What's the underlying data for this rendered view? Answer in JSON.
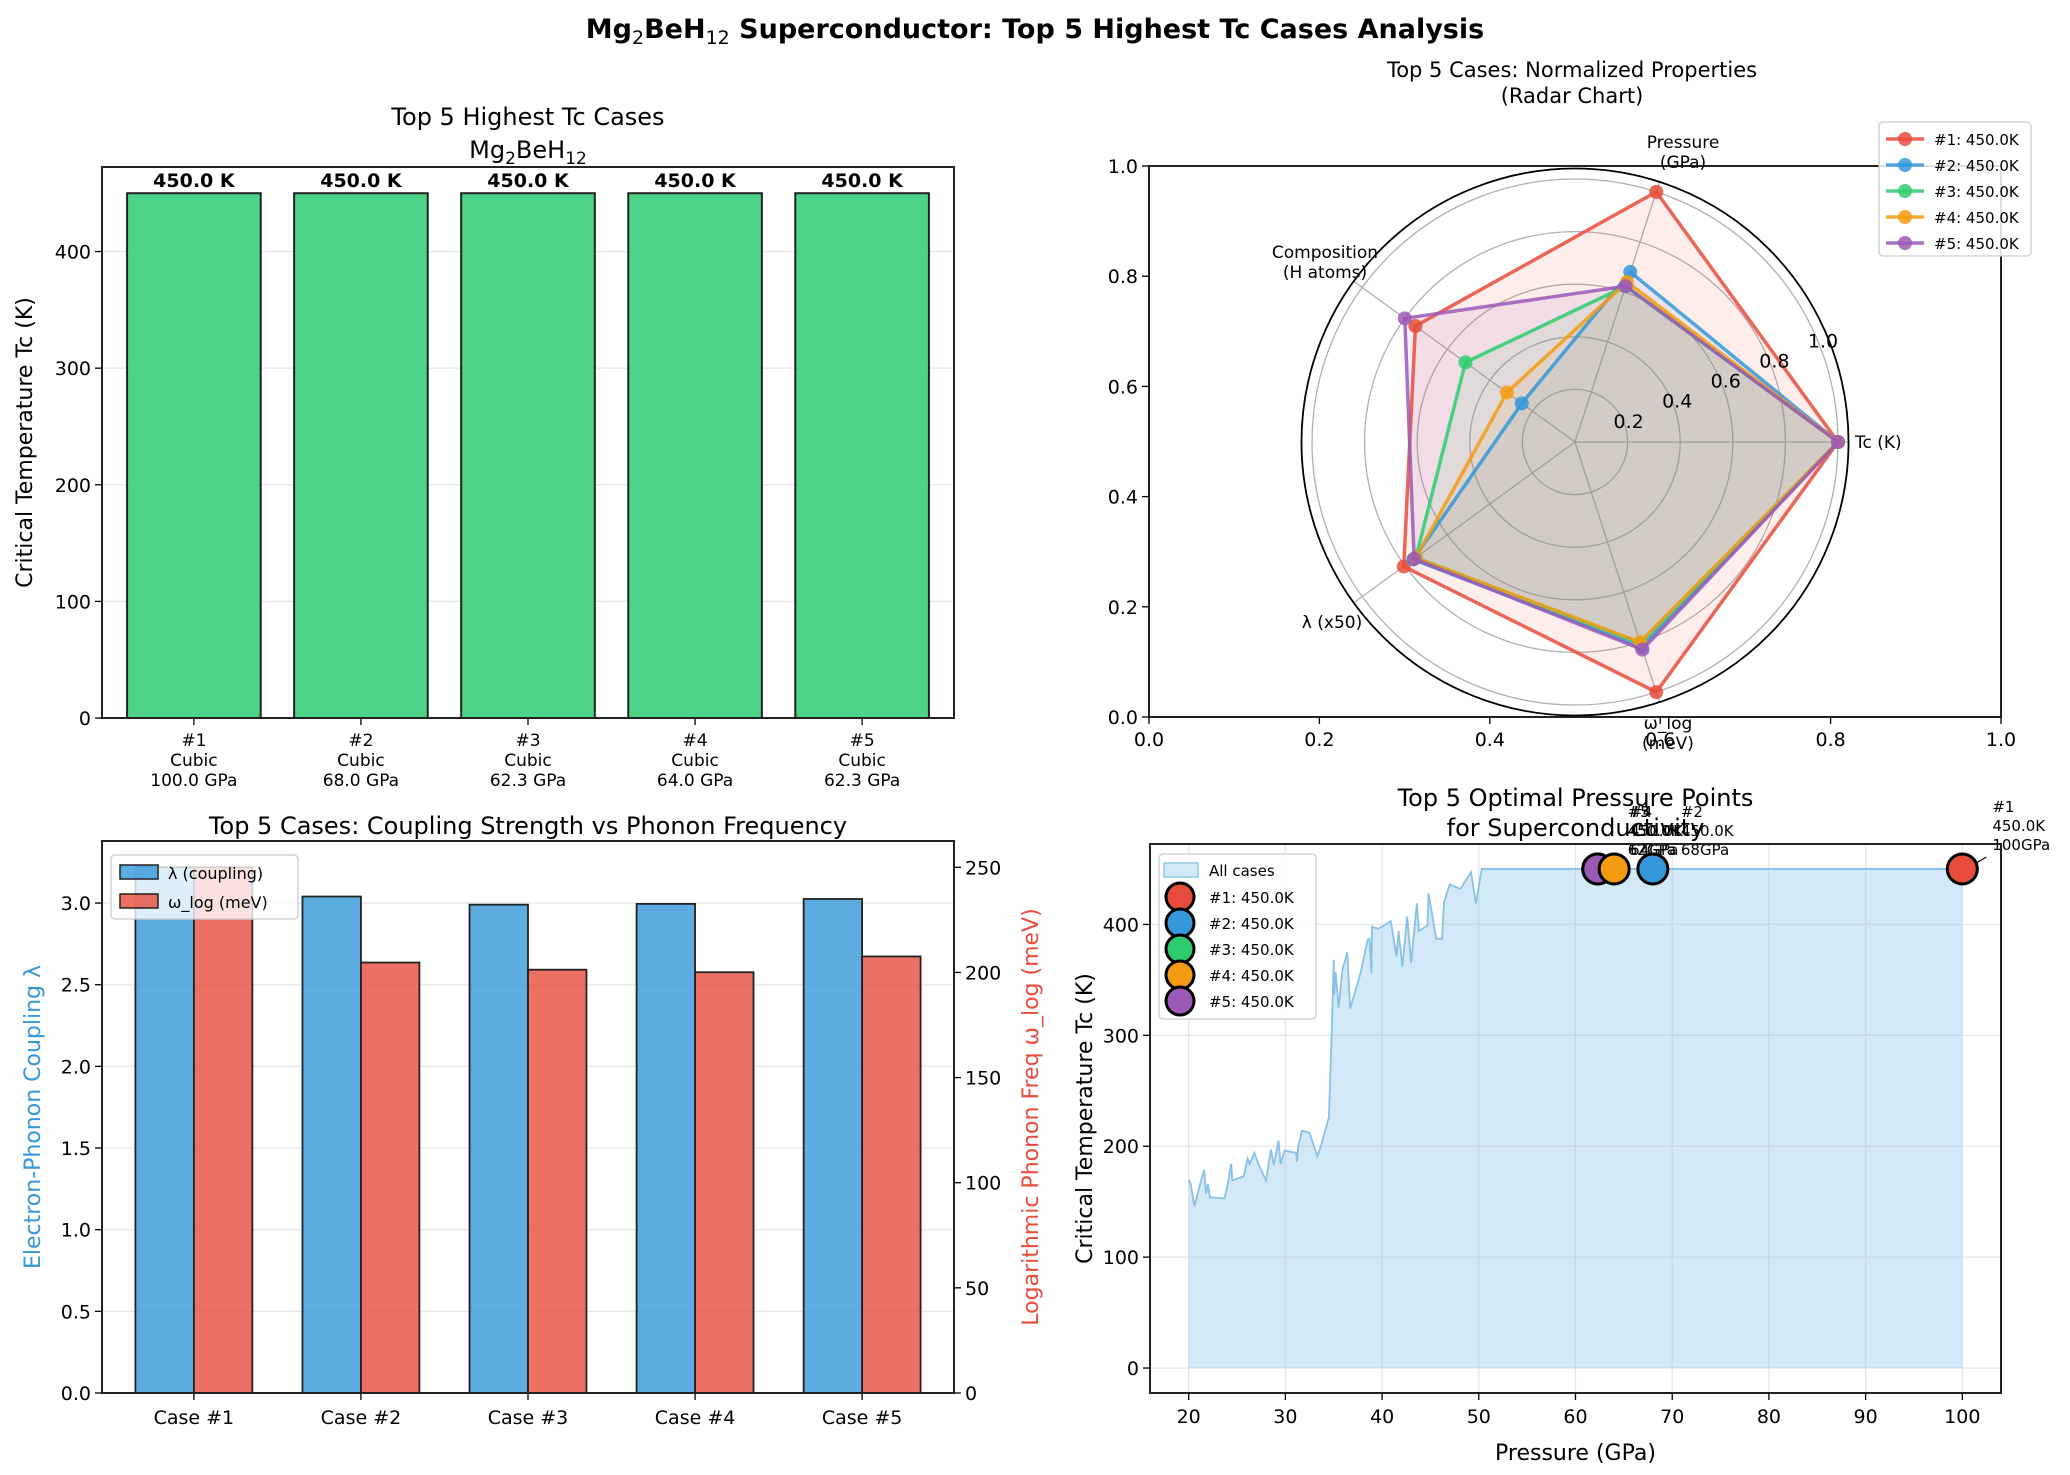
{
  "figure": {
    "suptitle_main": "Mg",
    "suptitle_sub1": "2",
    "suptitle_mid": "BeH",
    "suptitle_sub2": "12",
    "suptitle_rest": " Superconductor: Top 5 Highest Tc Cases Analysis"
  },
  "chart_data": [
    {
      "id": "tc_bar",
      "type": "bar",
      "title_line1": "Top 5 Highest Tc Cases",
      "title_line2_parts": [
        "Mg",
        "2",
        "BeH",
        "12"
      ],
      "ylabel": "Critical Temperature Tc (K)",
      "xlabel": "",
      "ylim": [
        0,
        472.5
      ],
      "yticks": [
        0,
        100,
        200,
        300,
        400
      ],
      "grid": "y",
      "color": "#2ecc71",
      "categories": [
        [
          "#1",
          "Cubic",
          "100.0 GPa"
        ],
        [
          "#2",
          "Cubic",
          "68.0 GPa"
        ],
        [
          "#3",
          "Cubic",
          "62.3 GPa"
        ],
        [
          "#4",
          "Cubic",
          "64.0 GPa"
        ],
        [
          "#5",
          "Cubic",
          "62.3 GPa"
        ]
      ],
      "values": [
        450.0,
        450.0,
        450.0,
        450.0,
        450.0
      ],
      "data_labels": [
        "450.0 K",
        "450.0 K",
        "450.0 K",
        "450.0 K",
        "450.0 K"
      ]
    },
    {
      "id": "radar",
      "type": "radar",
      "title_line1": "Top 5 Cases: Normalized Properties",
      "title_line2": "(Radar Chart)",
      "axes_labels": [
        [
          "Tc (K)"
        ],
        [
          "Pressure",
          "(GPa)"
        ],
        [
          "Composition",
          "(H atoms)"
        ],
        [
          "λ (x50)"
        ],
        [
          "ω_log",
          "(meV)"
        ]
      ],
      "rlim": [
        0,
        1.04
      ],
      "rticks": [
        0.2,
        0.4,
        0.6,
        0.8,
        1.0
      ],
      "rtick_labels": [
        "0.2",
        "0.4",
        "0.6",
        "0.8",
        "1.0"
      ],
      "background_xticks": [
        "0.0",
        "0.2",
        "0.4",
        "0.6",
        "0.8",
        "1.0"
      ],
      "background_yticks": [
        "0.0",
        "0.2",
        "0.4",
        "0.6",
        "0.8",
        "1.0"
      ],
      "legend_position": "top-right",
      "series": [
        {
          "name": "#1: 450.0K",
          "color": "#e74c3c",
          "values": [
            1.0,
            1.0,
            0.75,
            0.805,
            1.0
          ]
        },
        {
          "name": "#2: 450.0K",
          "color": "#3498db",
          "values": [
            1.0,
            0.68,
            0.25,
            0.76,
            0.82
          ]
        },
        {
          "name": "#3: 450.0K",
          "color": "#2ecc71",
          "values": [
            1.0,
            0.623,
            0.515,
            0.748,
            0.806
          ]
        },
        {
          "name": "#4: 450.0K",
          "color": "#f39c12",
          "values": [
            1.0,
            0.64,
            0.32,
            0.749,
            0.8
          ]
        },
        {
          "name": "#5: 450.0K",
          "color": "#9b59b6",
          "values": [
            1.0,
            0.623,
            0.8,
            0.756,
            0.83
          ]
        }
      ]
    },
    {
      "id": "coupling_bar",
      "type": "bar",
      "title": "Top 5 Cases: Coupling Strength vs Phonon Frequency",
      "categories": [
        "Case #1",
        "Case #2",
        "Case #3",
        "Case #4",
        "Case #5"
      ],
      "ylabel_left": "Electron-Phonon Coupling λ",
      "ylabel_right": "Logarithmic Phonon Freq ω_log (meV)",
      "ylim_left": [
        0,
        3.38
      ],
      "ylim_right": [
        0,
        262.5
      ],
      "yticks_left": [
        "0.0",
        "0.5",
        "1.0",
        "1.5",
        "2.0",
        "2.5",
        "3.0"
      ],
      "yticks_right": [
        "0",
        "50",
        "100",
        "150",
        "200",
        "250"
      ],
      "legend_position": "top-left",
      "series": [
        {
          "name": "λ (coupling)",
          "axis": "left",
          "color": "#3498db",
          "values": [
            3.22,
            3.04,
            2.99,
            2.995,
            3.025
          ]
        },
        {
          "name": "ω_log (meV)",
          "axis": "right",
          "color": "#e74c3c",
          "values": [
            250.0,
            204.7,
            201.3,
            200.1,
            207.6
          ]
        }
      ],
      "left_label_color": "#3498db",
      "right_label_color": "#e74c3c"
    },
    {
      "id": "pressure_points",
      "type": "area+scatter",
      "title_line1": "Top 5 Optimal Pressure Points",
      "title_line2": "for Superconductivity",
      "xlabel": "Pressure (GPa)",
      "ylabel": "Critical Temperature Tc (K)",
      "xlim": [
        16,
        104
      ],
      "ylim": [
        -22.5,
        472.5
      ],
      "xticks": [
        20,
        30,
        40,
        50,
        60,
        70,
        80,
        90,
        100
      ],
      "yticks": [
        0,
        100,
        200,
        300,
        400
      ],
      "legend_position": "top-left",
      "area": {
        "name": "All cases",
        "color": "#85c1e9",
        "x": [
          20.0,
          20.2,
          20.6,
          21.1,
          21.6,
          21.8,
          22.0,
          22.2,
          23.7,
          24.0,
          24.4,
          24.5,
          25.7,
          26.1,
          26.3,
          26.8,
          27.2,
          28.0,
          28.5,
          28.8,
          29.3,
          29.5,
          29.9,
          31.1,
          31.2,
          31.3,
          31.7,
          32.5,
          33.3,
          33.6,
          34.5,
          34.8,
          35.0,
          35.05,
          35.2,
          35.5,
          35.9,
          36.4,
          36.7,
          37.8,
          38.5,
          38.7,
          38.9,
          38.95,
          39.6,
          40.9,
          41.5,
          41.7,
          42.1,
          42.6,
          43.0,
          43.6,
          43.8,
          44.7,
          44.8,
          45.6,
          46.2,
          46.4,
          47.0,
          48.1,
          49.2,
          49.7,
          50.3,
          100.0
        ],
        "y": [
          170,
          166,
          146,
          163,
          179,
          157,
          166,
          154,
          153,
          164,
          184,
          169,
          173,
          189,
          184,
          194,
          184,
          169,
          197,
          183,
          205,
          184,
          196,
          194,
          186,
          198,
          214,
          212,
          191,
          198,
          226,
          304,
          368,
          337,
          357,
          325,
          359,
          375,
          324,
          357,
          386,
          387,
          356,
          398,
          396,
          403,
          371,
          394,
          362,
          407,
          365,
          419,
          394,
          399,
          428,
          387,
          387,
          420,
          436,
          432,
          447,
          419,
          450,
          450
        ]
      },
      "points": [
        {
          "name": "#1: 450.0K",
          "rank": "#1",
          "x": 100.0,
          "y": 450.0,
          "color": "#e74c3c",
          "annot": [
            "#1",
            "450.0K",
            "100GPa"
          ]
        },
        {
          "name": "#2: 450.0K",
          "rank": "#2",
          "x": 68.0,
          "y": 450.0,
          "color": "#3498db",
          "annot": [
            "#2",
            "450.0K",
            "68GPa"
          ]
        },
        {
          "name": "#3: 450.0K",
          "rank": "#3",
          "x": 62.3,
          "y": 450.0,
          "color": "#2ecc71",
          "annot": [
            "#3",
            "450.0K",
            "62GPa"
          ]
        },
        {
          "name": "#4: 450.0K",
          "rank": "#4",
          "x": 64.0,
          "y": 450.0,
          "color": "#f39c12",
          "annot": [
            "#4",
            "450.0K",
            "64GPa"
          ]
        },
        {
          "name": "#5: 450.0K",
          "rank": "#5",
          "x": 62.3,
          "y": 450.0,
          "color": "#9b59b6",
          "annot": [
            "#5",
            "450.0K",
            "62GPa"
          ]
        }
      ]
    }
  ]
}
